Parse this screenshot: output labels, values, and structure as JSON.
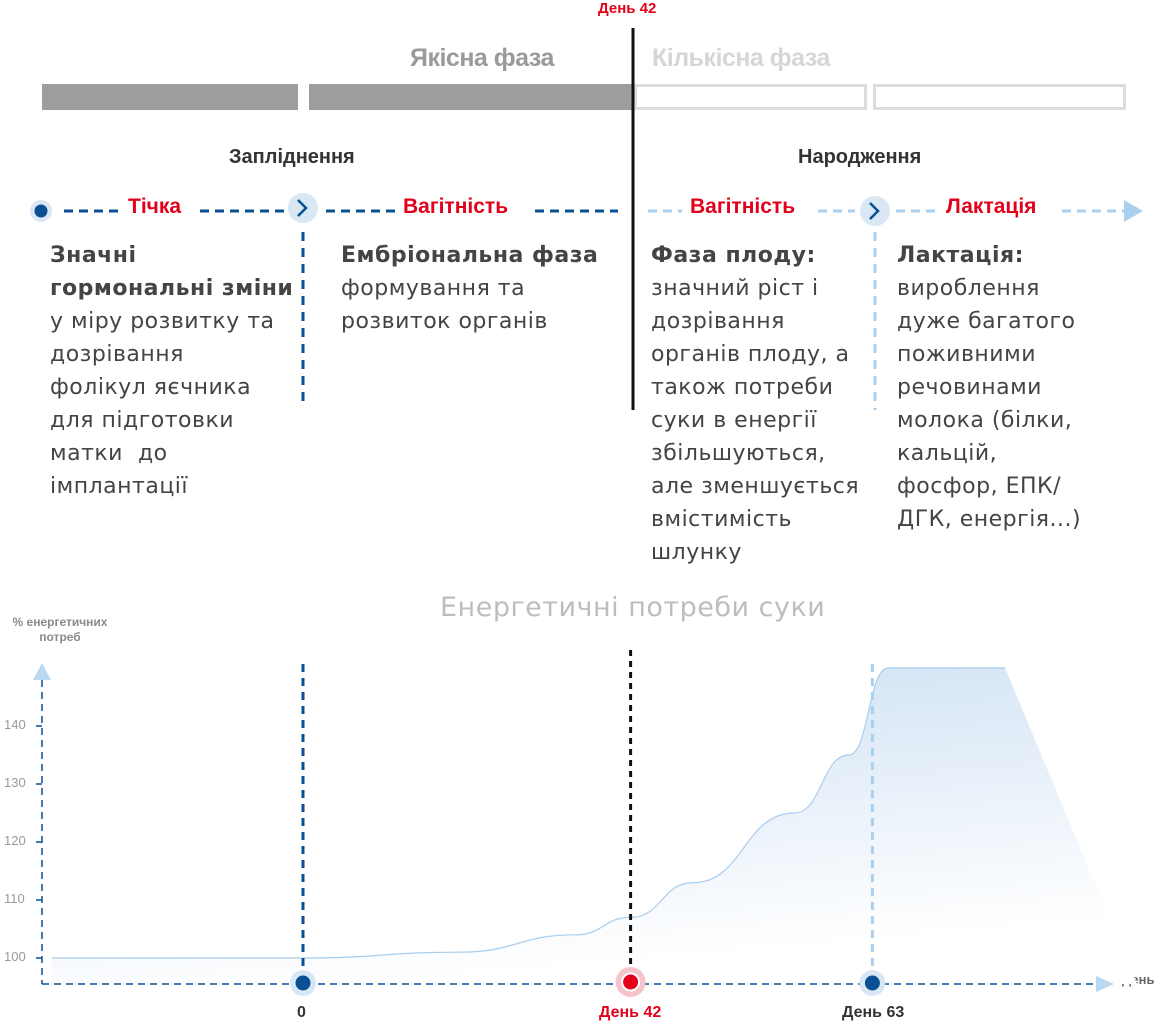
{
  "header": {
    "day42_top": "День 42",
    "qualitative_phase": "Якісна фаза",
    "quantitative_phase": "Кількісна фаза"
  },
  "events": {
    "fertilization": "Запліднення",
    "birth": "Народження"
  },
  "stages": [
    {
      "label": "Тічка"
    },
    {
      "label": "Вагітність"
    },
    {
      "label": "Вагітність"
    },
    {
      "label": "Лактація"
    }
  ],
  "columns": [
    {
      "head_lines": [
        "Значні",
        "гормональні зміни"
      ],
      "body_lines": [
        "у міру розвитку та",
        "дозрівання",
        "фолікул яєчника",
        "для підготовки",
        "матки  до",
        "імплантації"
      ]
    },
    {
      "head_lines": [
        "Ембріональна фаза"
      ],
      "body_lines": [
        "формування та",
        "розвиток органів"
      ]
    },
    {
      "head_lines": [
        "Фаза плоду:"
      ],
      "body_lines": [
        "значний ріст і",
        "дозрівання",
        "органів плоду, а",
        "також потреби",
        "суки в енергії",
        "збільшуються,",
        "але зменшується",
        "вмістимість",
        "шлунку"
      ]
    },
    {
      "head_lines": [
        "Лактація:"
      ],
      "body_lines": [
        "вироблення",
        "дуже багатого",
        "поживними",
        "речовинами",
        "молока (білки,",
        "кальцій,",
        "фосфор, ЕПК/",
        "ДГК, енергія...)"
      ]
    }
  ],
  "colors": {
    "red": "#e2001a",
    "dark_blue": "#0a4f94",
    "light_blue": "#a9d0ef",
    "grey_bar": "#9d9d9d",
    "light_grey": "#dcdcdc"
  },
  "chart_data": {
    "type": "area",
    "title": "Енергетичні потреби суки",
    "ylabel": "% енергетичних потреб",
    "xlabel": "День",
    "y_ticks": [
      "100",
      "110",
      "120",
      "130",
      "140"
    ],
    "ylim": [
      95,
      150
    ],
    "x_ticks": [
      {
        "label": "0",
        "marker": "dark-blue"
      },
      {
        "label": "День 42",
        "marker": "red"
      },
      {
        "label": "День 63",
        "marker": "dark-blue"
      }
    ],
    "series": [
      {
        "x": [
          -35,
          0,
          20,
          35,
          42,
          50,
          63,
          70,
          75,
          90
        ],
        "y": [
          100,
          100,
          101,
          104,
          107,
          113,
          125,
          135,
          150,
          150
        ]
      }
    ],
    "grid": false
  }
}
